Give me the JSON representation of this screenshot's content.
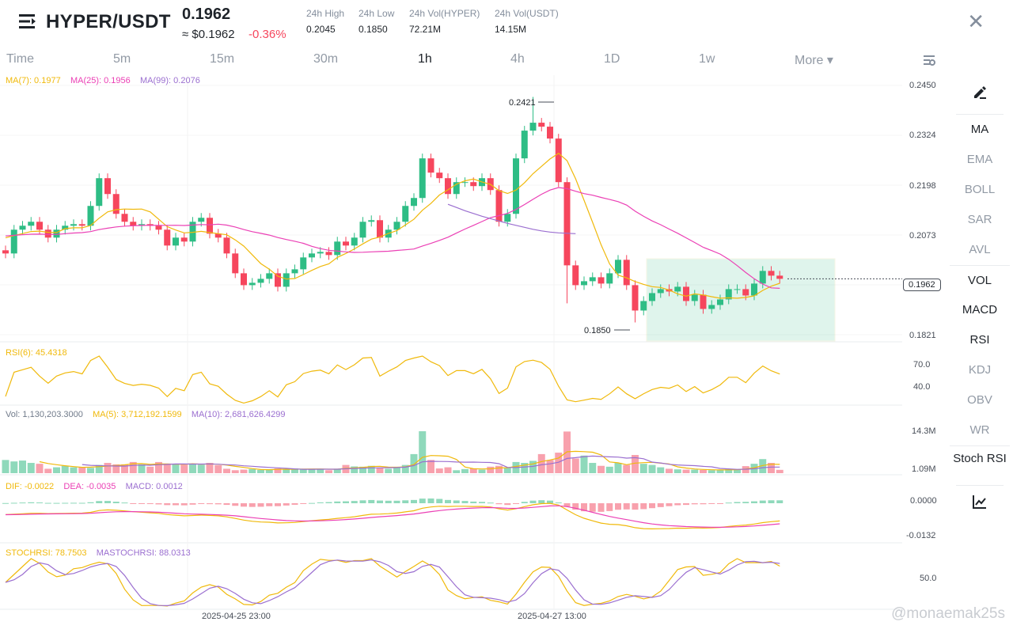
{
  "header": {
    "pair": "HYPER/USDT",
    "price": "0.1962",
    "approx": "≈ $0.1962",
    "change": "-0.36%",
    "stats": [
      {
        "label": "24h High",
        "value": "0.2045"
      },
      {
        "label": "24h Low",
        "value": "0.1850"
      },
      {
        "label": "24h Vol(HYPER)",
        "value": "72.21M"
      },
      {
        "label": "24h Vol(USDT)",
        "value": "14.15M"
      }
    ]
  },
  "tabs": [
    "Time",
    "5m",
    "15m",
    "30m",
    "1h",
    "4h",
    "1D",
    "1w",
    "More ▾"
  ],
  "active_tab": "1h",
  "sidebar": [
    "MA",
    "EMA",
    "BOLL",
    "SAR",
    "AVL",
    "VOL",
    "MACD",
    "RSI",
    "KDJ",
    "OBV",
    "WR",
    "Stoch RSI"
  ],
  "sidebar_active": [
    "MA",
    "VOL",
    "MACD",
    "RSI",
    "Stoch RSI"
  ],
  "legends": {
    "ma7": "MA(7): 0.1977",
    "ma25": "MA(25): 0.1956",
    "ma99": "MA(99): 0.2076",
    "rsi": "RSI(6): 45.4318",
    "vol": "Vol: 1,130,203.3000",
    "vma5": "MA(5): 3,712,192.1599",
    "vma10": "MA(10): 2,681,626.4299",
    "dif": "DIF: -0.0022",
    "dea": "DEA: -0.0035",
    "macd": "MACD: 0.0012",
    "stoch": "STOCHRSI: 78.7503",
    "mastoch": "MASTOCHRSI: 88.0313"
  },
  "axis": {
    "price": [
      "0.2450",
      "0.2324",
      "0.2198",
      "0.2073",
      "0.1821"
    ],
    "rsi": [
      "70.0",
      "40.0"
    ],
    "vol": [
      "14.3M",
      "1.09M"
    ],
    "macd": [
      "0.0000",
      "-0.0132"
    ],
    "stoch": [
      "50.0"
    ]
  },
  "current_price": "0.1962",
  "high_label": "0.2421",
  "low_label": "0.1850",
  "time_labels": [
    "2025-04-25 23:00",
    "2025-04-27 13:00"
  ],
  "watermark": "@monaemak25s",
  "colors": {
    "up": "#2ebd85",
    "down": "#f6465d",
    "ma7": "#f0b90b",
    "ma25": "#eb40b5",
    "ma99": "#9b6fd0"
  },
  "chart_data": {
    "type": "candlestick",
    "ylim": [
      0.1821,
      0.245
    ],
    "closes": [
      0.2026,
      0.2086,
      0.2096,
      0.2106,
      0.2086,
      0.2066,
      0.2086,
      0.2096,
      0.21,
      0.2096,
      0.2146,
      0.2216,
      0.2176,
      0.2126,
      0.2106,
      0.2096,
      0.21,
      0.2096,
      0.2086,
      0.2046,
      0.2066,
      0.2056,
      0.2106,
      0.2116,
      0.2076,
      0.2066,
      0.2026,
      0.1976,
      0.1946,
      0.1952,
      0.1962,
      0.1976,
      0.1942,
      0.1976,
      0.1986,
      0.2016,
      0.2026,
      0.203,
      0.2022,
      0.2056,
      0.2046,
      0.2066,
      0.2106,
      0.211,
      0.2066,
      0.2086,
      0.2106,
      0.2146,
      0.2166,
      0.2266,
      0.223,
      0.2216,
      0.2176,
      0.2206,
      0.2206,
      0.2196,
      0.2216,
      0.2186,
      0.2106,
      0.2126,
      0.2266,
      0.2336,
      0.2356,
      0.2346,
      0.2316,
      0.2206,
      0.1996,
      0.1946,
      0.1956,
      0.1966,
      0.195,
      0.1976,
      0.201,
      0.1946,
      0.1882,
      0.1906,
      0.1926,
      0.1936,
      0.193,
      0.1942,
      0.1906,
      0.1922,
      0.1886,
      0.1896,
      0.191,
      0.1936,
      0.1936,
      0.192,
      0.195,
      0.1982,
      0.197,
      0.1962
    ],
    "volumes_m": [
      4.5,
      4,
      4.3,
      3.5,
      3.2,
      1.5,
      2,
      2.5,
      2,
      2,
      1.8,
      2.8,
      3.5,
      3,
      3,
      3.8,
      3,
      2.2,
      3.8,
      3,
      3.2,
      2.9,
      3.2,
      2.9,
      3.5,
      2.7,
      1.5,
      1,
      1.2,
      1.4,
      1.1,
      1.2,
      1.6,
      1.3,
      1.6,
      1.3,
      1.4,
      1.5,
      1.0,
      1.5,
      2.8,
      2.3,
      2.2,
      2.5,
      1.9,
      1.5,
      2,
      2.8,
      6.5,
      14.3,
      4.5,
      1.6,
      2,
      1,
      1.4,
      1.6,
      1.2,
      2.2,
      2.5,
      1.8,
      3.8,
      3.5,
      4.2,
      6.5,
      4.5,
      7,
      14.2,
      5,
      6,
      3.5,
      2.5,
      2.2,
      3.5,
      2.8,
      6.2,
      3.2,
      2.8,
      2,
      1.5,
      1.3,
      1.2,
      1.2,
      1.1,
      1.0,
      1.0,
      1.4,
      1.3,
      2.4,
      3.2,
      4.8,
      3.5,
      1.13
    ],
    "ma99": [
      0.215,
      0.2142,
      0.2134,
      0.2127,
      0.212,
      0.2114,
      0.2108,
      0.2102,
      0.2097,
      0.2092,
      0.2087,
      0.2083,
      0.208,
      0.2078,
      0.2077,
      0.2076
    ],
    "annotations": {
      "high": 0.2421,
      "low": 0.185
    }
  }
}
